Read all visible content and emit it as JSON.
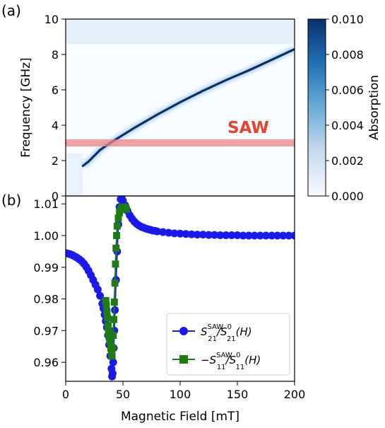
{
  "chart_data": [
    {
      "panel_label": "(a)",
      "type": "heatmap",
      "ylabel": "Frequency [GHz]",
      "yticks": [
        "0",
        "2",
        "4",
        "6",
        "8",
        "10"
      ],
      "ylim": [
        0,
        10
      ],
      "xlim": [
        0,
        200
      ],
      "colorbar": {
        "label": "Absorption",
        "ticks": [
          "0.000",
          "0.002",
          "0.004",
          "0.006",
          "0.008",
          "0.010"
        ],
        "range": [
          0,
          0.01
        ],
        "colors": [
          "#f7fbff",
          "#c6dbef",
          "#6baed6",
          "#2171b5",
          "#08306b"
        ]
      },
      "annotation": "SAW",
      "saw_band_ghz": [
        2.8,
        3.2
      ],
      "saw_band_color": "#f08080",
      "resonance_curve": {
        "x": [
          15,
          20,
          30,
          40,
          50,
          60,
          80,
          100,
          120,
          140,
          160,
          180,
          200
        ],
        "y": [
          1.7,
          1.95,
          2.6,
          3.05,
          3.45,
          3.85,
          4.6,
          5.3,
          5.95,
          6.55,
          7.1,
          7.7,
          8.3
        ]
      },
      "horizontal_line_ghz": 8.1
    },
    {
      "panel_label": "(b)",
      "type": "line",
      "xlabel": "Magnetic Field [mT]",
      "xticks": [
        "0",
        "50",
        "100",
        "150",
        "200"
      ],
      "xlim": [
        0,
        200
      ],
      "yticks": [
        "0.96",
        "0.97",
        "0.98",
        "0.99",
        "1.00",
        "1.01"
      ],
      "ylim": [
        0.954,
        1.0125
      ],
      "series": [
        {
          "legend_main": "S",
          "legend_sup": "SAW",
          "legend_sub": "21",
          "legend_mid": "/S",
          "legend_sup2": "0",
          "legend_sub2": "21",
          "legend_tail": "(H)",
          "color": "#1a1aee",
          "marker": "circle",
          "x": [
            0,
            2,
            4,
            6,
            8,
            10,
            12,
            14,
            16,
            18,
            20,
            22,
            24,
            26,
            28,
            30,
            32,
            33,
            34,
            35,
            36,
            37,
            38,
            39,
            40,
            40.5,
            41,
            41.5,
            42,
            42.5,
            43,
            44,
            45,
            46,
            47,
            48,
            49,
            50,
            52,
            54,
            56,
            58,
            60,
            62,
            64,
            66,
            68,
            70,
            72,
            74,
            76,
            78,
            80,
            85,
            90,
            95,
            100,
            105,
            110,
            115,
            120,
            125,
            130,
            135,
            140,
            145,
            150,
            155,
            160,
            165,
            170,
            175,
            180,
            185,
            190,
            195,
            200
          ],
          "y": [
            0.9945,
            0.9943,
            0.9941,
            0.9938,
            0.9934,
            0.993,
            0.9925,
            0.9919,
            0.9911,
            0.9901,
            0.9889,
            0.9875,
            0.986,
            0.9845,
            0.983,
            0.981,
            0.9785,
            0.977,
            0.975,
            0.973,
            0.971,
            0.9685,
            0.9655,
            0.962,
            0.958,
            0.9555,
            0.9565,
            0.96,
            0.9645,
            0.97,
            0.9765,
            0.986,
            0.995,
            1.0035,
            1.009,
            1.0115,
            1.0118,
            1.011,
            1.0095,
            1.0078,
            1.0064,
            1.0053,
            1.0044,
            1.0037,
            1.0032,
            1.0028,
            1.0025,
            1.0022,
            1.002,
            1.0018,
            1.0016,
            1.0015,
            1.0013,
            1.0011,
            1.0009,
            1.0007,
            1.0006,
            1.0005,
            1.0004,
            1.0003,
            1.0003,
            1.0002,
            1.0002,
            1.0001,
            1.0001,
            1.0001,
            1.0001,
            1.0,
            1.0,
            1.0,
            1.0,
            1.0,
            1.0,
            1.0,
            1.0,
            1.0,
            1.0
          ]
        },
        {
          "legend_main": "−S",
          "legend_sup": "SAW",
          "legend_sub": "11",
          "legend_mid": "/S",
          "legend_sup2": "0",
          "legend_sub2": "11",
          "legend_tail": "(H)",
          "color": "#1e7d12",
          "marker": "square",
          "x": [
            35,
            35.5,
            36,
            36.5,
            37,
            37.5,
            38,
            38.5,
            39,
            39.5,
            40,
            40.5,
            41,
            41.5,
            42,
            42.5,
            43,
            43.5,
            44,
            44.5,
            45,
            46,
            47,
            48,
            49,
            50,
            51,
            52,
            53
          ],
          "y": [
            0.9795,
            0.978,
            0.976,
            0.974,
            0.9715,
            0.9695,
            0.968,
            0.9675,
            0.9665,
            0.9645,
            0.963,
            0.962,
            0.9645,
            0.9685,
            0.9735,
            0.979,
            0.985,
            0.991,
            0.996,
            1.0,
            1.003,
            1.0055,
            1.0072,
            1.0082,
            1.0088,
            1.009,
            1.009,
            1.0088,
            1.0083
          ]
        }
      ]
    }
  ]
}
